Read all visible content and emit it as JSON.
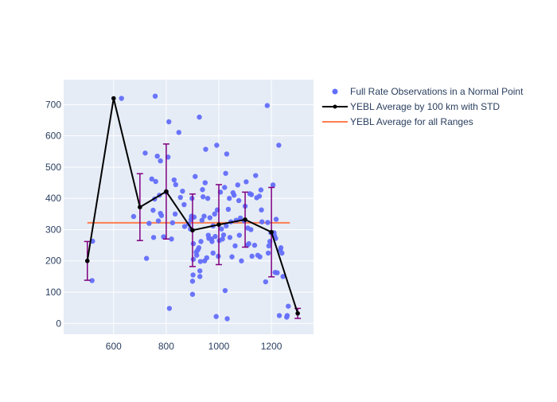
{
  "chart_data": {
    "type": "scatter",
    "xlim": [
      410,
      1360
    ],
    "ylim": [
      -35,
      780
    ],
    "x_ticks": [
      600,
      800,
      1000,
      1200
    ],
    "y_ticks": [
      0,
      100,
      200,
      300,
      400,
      500,
      600,
      700
    ],
    "x_tick_labels": [
      "600",
      "800",
      "1000",
      "1200"
    ],
    "y_tick_labels": [
      "0",
      "100",
      "200",
      "300",
      "400",
      "500",
      "600",
      "700"
    ],
    "grid": true,
    "colors": {
      "plot_bg": "#e5ecf6",
      "grid": "#ffffff",
      "scatter": "#636efa",
      "average_line": "#000000",
      "error_bar": "#800080",
      "overall_line": "#ff7f50"
    },
    "legend": {
      "placement": "right",
      "entries": [
        "Full Rate Observations in a Normal Point",
        "YEBL Average by 100 km with STD",
        "YEBL Average for all Ranges"
      ]
    },
    "series": [
      {
        "name": "Full Rate Observations in a Normal Point",
        "type": "scatter",
        "points": [
          [
            520,
            263
          ],
          [
            518,
            137
          ],
          [
            630,
            720
          ],
          [
            676,
            342
          ],
          [
            720,
            545
          ],
          [
            725,
            208
          ],
          [
            735,
            320
          ],
          [
            745,
            462
          ],
          [
            750,
            362
          ],
          [
            752,
            275
          ],
          [
            756,
            398
          ],
          [
            758,
            727
          ],
          [
            760,
            454
          ],
          [
            766,
            535
          ],
          [
            770,
            328
          ],
          [
            774,
            410
          ],
          [
            778,
            520
          ],
          [
            778,
            352
          ],
          [
            782,
            345
          ],
          [
            790,
            277
          ],
          [
            800,
            420
          ],
          [
            807,
            532
          ],
          [
            810,
            645
          ],
          [
            812,
            48
          ],
          [
            820,
            270
          ],
          [
            824,
            322
          ],
          [
            830,
            459
          ],
          [
            834,
            350
          ],
          [
            836,
            444
          ],
          [
            848,
            611
          ],
          [
            854,
            403
          ],
          [
            862,
            423
          ],
          [
            868,
            380
          ],
          [
            870,
            310
          ],
          [
            885,
            318
          ],
          [
            892,
            302
          ],
          [
            894,
            332
          ],
          [
            896,
            343
          ],
          [
            898,
            400
          ],
          [
            900,
            93
          ],
          [
            900,
            135
          ],
          [
            902,
            155
          ],
          [
            903,
            205
          ],
          [
            903,
            255
          ],
          [
            906,
            340
          ],
          [
            910,
            470
          ],
          [
            914,
            228
          ],
          [
            916,
            218
          ],
          [
            920,
            235
          ],
          [
            924,
            242
          ],
          [
            926,
            660
          ],
          [
            928,
            150
          ],
          [
            928,
            168
          ],
          [
            930,
            198
          ],
          [
            932,
            262
          ],
          [
            936,
            330
          ],
          [
            938,
            428
          ],
          [
            940,
            405
          ],
          [
            944,
            343
          ],
          [
            946,
            200
          ],
          [
            948,
            450
          ],
          [
            950,
            557
          ],
          [
            954,
            210
          ],
          [
            958,
            400
          ],
          [
            960,
            282
          ],
          [
            962,
            272
          ],
          [
            966,
            338
          ],
          [
            972,
            270
          ],
          [
            974,
            262
          ],
          [
            978,
            312
          ],
          [
            978,
            225
          ],
          [
            984,
            350
          ],
          [
            986,
            278
          ],
          [
            990,
            22
          ],
          [
            992,
            570
          ],
          [
            994,
            363
          ],
          [
            998,
            215
          ],
          [
            1002,
            265
          ],
          [
            1006,
            420
          ],
          [
            1010,
            302
          ],
          [
            1014,
            270
          ],
          [
            1018,
            283
          ],
          [
            1022,
            435
          ],
          [
            1024,
            105
          ],
          [
            1026,
            480
          ],
          [
            1028,
            312
          ],
          [
            1030,
            542
          ],
          [
            1032,
            15
          ],
          [
            1036,
            365
          ],
          [
            1040,
            400
          ],
          [
            1042,
            275
          ],
          [
            1046,
            325
          ],
          [
            1050,
            213
          ],
          [
            1054,
            418
          ],
          [
            1058,
            410
          ],
          [
            1062,
            248
          ],
          [
            1066,
            330
          ],
          [
            1072,
            443
          ],
          [
            1076,
            393
          ],
          [
            1078,
            282
          ],
          [
            1082,
            337
          ],
          [
            1086,
            200
          ],
          [
            1096,
            328
          ],
          [
            1100,
            375
          ],
          [
            1104,
            453
          ],
          [
            1108,
            250
          ],
          [
            1110,
            305
          ],
          [
            1114,
            255
          ],
          [
            1118,
            415
          ],
          [
            1122,
            300
          ],
          [
            1124,
            412
          ],
          [
            1126,
            215
          ],
          [
            1136,
            250
          ],
          [
            1140,
            473
          ],
          [
            1144,
            402
          ],
          [
            1148,
            218
          ],
          [
            1154,
            407
          ],
          [
            1156,
            213
          ],
          [
            1160,
            427
          ],
          [
            1162,
            363
          ],
          [
            1164,
            325
          ],
          [
            1178,
            133
          ],
          [
            1184,
            697
          ],
          [
            1186,
            323
          ],
          [
            1188,
            225
          ],
          [
            1190,
            248
          ],
          [
            1194,
            262
          ],
          [
            1198,
            290
          ],
          [
            1206,
            443
          ],
          [
            1210,
            290
          ],
          [
            1212,
            280
          ],
          [
            1214,
            163
          ],
          [
            1216,
            272
          ],
          [
            1218,
            333
          ],
          [
            1222,
            162
          ],
          [
            1228,
            570
          ],
          [
            1230,
            25
          ],
          [
            1234,
            235
          ],
          [
            1236,
            242
          ],
          [
            1240,
            225
          ],
          [
            1244,
            150
          ],
          [
            1258,
            20
          ],
          [
            1260,
            25
          ],
          [
            1264,
            55
          ]
        ]
      },
      {
        "name": "YEBL Average by 100 km with STD",
        "type": "line",
        "points": [
          {
            "x": 500,
            "y": 200,
            "std": 62
          },
          {
            "x": 600,
            "y": 720,
            "std": 0
          },
          {
            "x": 700,
            "y": 372,
            "std": 107
          },
          {
            "x": 800,
            "y": 422,
            "std": 152
          },
          {
            "x": 900,
            "y": 298,
            "std": 116
          },
          {
            "x": 1000,
            "y": 316,
            "std": 128
          },
          {
            "x": 1100,
            "y": 332,
            "std": 88
          },
          {
            "x": 1200,
            "y": 292,
            "std": 143
          },
          {
            "x": 1300,
            "y": 32,
            "std": 16
          }
        ]
      },
      {
        "name": "YEBL Average for all Ranges",
        "type": "line",
        "points": [
          {
            "x": 500,
            "y": 322
          },
          {
            "x": 1270,
            "y": 322
          }
        ]
      }
    ]
  }
}
